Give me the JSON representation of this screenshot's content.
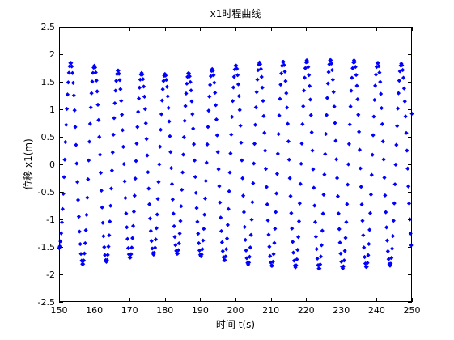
{
  "chart_data": {
    "type": "scatter",
    "title": "x1时程曲线",
    "xlabel": "时间 t(s)",
    "ylabel": "位移 x1(m)",
    "xlim": [
      150,
      250
    ],
    "ylim": [
      -2.5,
      2.5
    ],
    "xticks": [
      "150",
      "160",
      "170",
      "180",
      "190",
      "200",
      "210",
      "220",
      "230",
      "240",
      "250"
    ],
    "yticks": [
      "2.5",
      "2",
      "1.5",
      "1",
      "0.5",
      "0",
      "-0.5",
      "-1",
      "-1.5",
      "-2",
      "-2.5"
    ],
    "grid": false,
    "marker": "diamond",
    "color": "#0000ff",
    "series": [
      {
        "peaks": [
          {
            "x": 153.3,
            "y": 1.85
          },
          {
            "x": 160.0,
            "y": 1.79
          },
          {
            "x": 166.7,
            "y": 1.71
          },
          {
            "x": 173.4,
            "y": 1.66
          },
          {
            "x": 180.0,
            "y": 1.64
          },
          {
            "x": 186.7,
            "y": 1.66
          },
          {
            "x": 193.4,
            "y": 1.73
          },
          {
            "x": 200.1,
            "y": 1.8
          },
          {
            "x": 206.8,
            "y": 1.85
          },
          {
            "x": 213.5,
            "y": 1.87
          },
          {
            "x": 220.2,
            "y": 1.89
          },
          {
            "x": 226.9,
            "y": 1.9
          },
          {
            "x": 233.6,
            "y": 1.89
          },
          {
            "x": 240.3,
            "y": 1.85
          },
          {
            "x": 247.0,
            "y": 1.83
          }
        ],
        "troughs": [
          {
            "x": 150.0,
            "y": -1.52
          },
          {
            "x": 156.7,
            "y": -1.82
          },
          {
            "x": 163.4,
            "y": -1.77
          },
          {
            "x": 170.1,
            "y": -1.7
          },
          {
            "x": 176.8,
            "y": -1.64
          },
          {
            "x": 183.5,
            "y": -1.63
          },
          {
            "x": 190.2,
            "y": -1.67
          },
          {
            "x": 196.9,
            "y": -1.75
          },
          {
            "x": 203.6,
            "y": -1.82
          },
          {
            "x": 210.3,
            "y": -1.85
          },
          {
            "x": 217.0,
            "y": -1.87
          },
          {
            "x": 223.7,
            "y": -1.9
          },
          {
            "x": 230.4,
            "y": -1.89
          },
          {
            "x": 237.1,
            "y": -1.87
          },
          {
            "x": 243.8,
            "y": -1.84
          },
          {
            "x": 250.5,
            "y": -1.82
          }
        ],
        "end_value": 0.92
      }
    ]
  }
}
